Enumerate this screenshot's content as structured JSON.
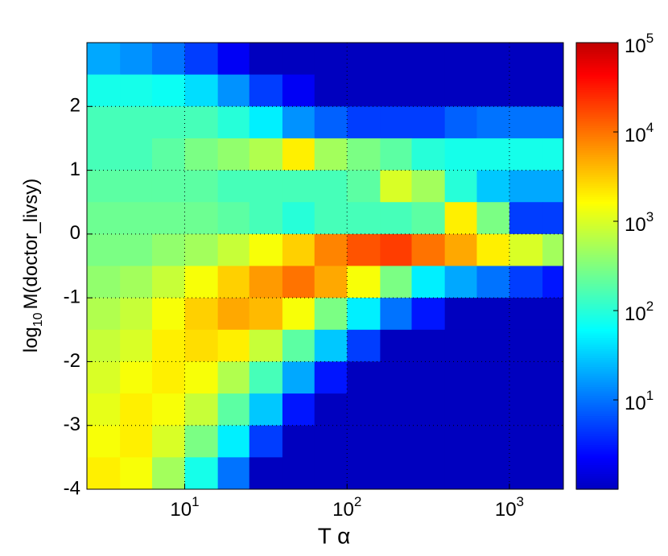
{
  "chart_data": {
    "type": "heatmap",
    "xlabel": "T α",
    "ylabel": {
      "base": "log",
      "subscript": "10",
      "text": "M(doctor_livsy)"
    },
    "xscale": "log",
    "colorscale": "log",
    "colormap": "jet",
    "grid": true,
    "xlim": [
      2.5,
      2150
    ],
    "ylim": [
      -4,
      3
    ],
    "clim": [
      1,
      100000
    ],
    "xticks": [
      {
        "value": 10,
        "label": "10",
        "sup": "1"
      },
      {
        "value": 100,
        "label": "10",
        "sup": "2"
      },
      {
        "value": 1000,
        "label": "10",
        "sup": "3"
      }
    ],
    "yticks": [
      -4,
      -3,
      -2,
      -1,
      0,
      1,
      2
    ],
    "cticks": [
      {
        "value": 10,
        "label": "10",
        "sup": "1"
      },
      {
        "value": 100,
        "label": "10",
        "sup": "2"
      },
      {
        "value": 1000,
        "label": "10",
        "sup": "3"
      },
      {
        "value": 10000,
        "label": "10",
        "sup": "4"
      },
      {
        "value": 100000,
        "label": "10",
        "sup": "5"
      }
    ],
    "x_edges": [
      2.5,
      4,
      6.3,
      10,
      16,
      25,
      40,
      63,
      100,
      160,
      250,
      400,
      630,
      1000,
      1600,
      2150
    ],
    "y_edges": [
      3,
      2.5,
      2,
      1.5,
      1,
      0.5,
      0,
      -0.5,
      -1,
      -1.5,
      -2,
      -2.5,
      -3,
      -3.5,
      -4
    ],
    "z": [
      [
        20,
        15,
        10,
        5,
        2,
        1,
        1,
        1,
        1,
        1,
        1,
        1,
        1,
        1,
        1
      ],
      [
        80,
        80,
        70,
        40,
        15,
        5,
        2,
        1,
        1,
        1,
        1,
        1,
        1,
        1,
        1
      ],
      [
        150,
        150,
        150,
        150,
        100,
        50,
        15,
        8,
        5,
        5,
        5,
        8,
        10,
        10,
        10
      ],
      [
        150,
        150,
        200,
        300,
        400,
        600,
        2000,
        500,
        300,
        200,
        100,
        80,
        80,
        80,
        80
      ],
      [
        200,
        200,
        200,
        200,
        150,
        150,
        150,
        150,
        200,
        1000,
        500,
        100,
        30,
        20,
        20
      ],
      [
        250,
        250,
        250,
        250,
        200,
        150,
        100,
        150,
        150,
        150,
        200,
        2000,
        300,
        5,
        5
      ],
      [
        300,
        300,
        400,
        500,
        800,
        1500,
        3000,
        8000,
        15000,
        20000,
        10000,
        5000,
        2000,
        1000,
        500
      ],
      [
        400,
        500,
        800,
        1500,
        3000,
        6000,
        10000,
        5000,
        1500,
        300,
        50,
        20,
        10,
        5,
        3
      ],
      [
        600,
        800,
        1500,
        3000,
        5000,
        4000,
        1500,
        300,
        50,
        10,
        3,
        1,
        1,
        1,
        1
      ],
      [
        800,
        1000,
        2000,
        2500,
        2000,
        800,
        200,
        30,
        5,
        1,
        1,
        1,
        1,
        1,
        1
      ],
      [
        1000,
        1500,
        2000,
        1500,
        600,
        150,
        20,
        3,
        1,
        1,
        1,
        1,
        1,
        1,
        1
      ],
      [
        1200,
        2000,
        1500,
        800,
        200,
        30,
        3,
        1,
        1,
        1,
        1,
        1,
        1,
        1,
        1
      ],
      [
        1500,
        2000,
        1000,
        300,
        50,
        5,
        1,
        1,
        1,
        1,
        1,
        1,
        1,
        1,
        1
      ],
      [
        2000,
        1500,
        500,
        80,
        10,
        1,
        1,
        1,
        1,
        1,
        1,
        1,
        1,
        1,
        1
      ]
    ]
  }
}
